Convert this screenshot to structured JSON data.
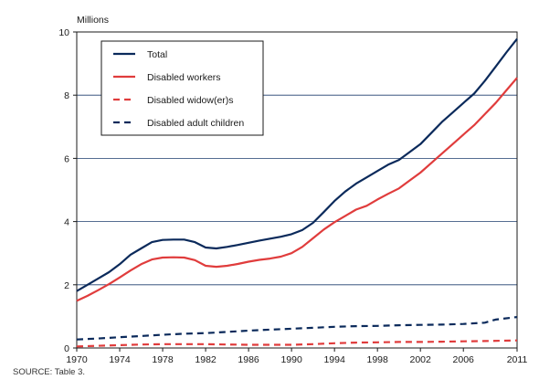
{
  "chart_data": {
    "type": "line",
    "y_unit_label": "Millions",
    "xlim": [
      1970,
      2011
    ],
    "ylim": [
      0,
      10
    ],
    "y_ticks": [
      0,
      2,
      4,
      6,
      8,
      10
    ],
    "x_ticks": [
      1970,
      1974,
      1978,
      1982,
      1986,
      1990,
      1994,
      1998,
      2002,
      2006,
      2011
    ],
    "grid": "horizontal",
    "legend_position": "top-left",
    "series": [
      {
        "name": "Total",
        "color": "#0b2a5b",
        "style": "solid",
        "x": [
          1970,
          1971,
          1972,
          1973,
          1974,
          1975,
          1976,
          1977,
          1978,
          1979,
          1980,
          1981,
          1982,
          1983,
          1984,
          1985,
          1986,
          1987,
          1988,
          1989,
          1990,
          1991,
          1992,
          1993,
          1994,
          1995,
          1996,
          1997,
          1998,
          1999,
          2000,
          2001,
          2002,
          2003,
          2004,
          2005,
          2006,
          2007,
          2008,
          2009,
          2010,
          2011
        ],
        "values": [
          1.8,
          2.0,
          2.2,
          2.4,
          2.65,
          2.95,
          3.15,
          3.35,
          3.42,
          3.43,
          3.43,
          3.35,
          3.18,
          3.15,
          3.2,
          3.26,
          3.33,
          3.4,
          3.46,
          3.52,
          3.6,
          3.73,
          3.96,
          4.3,
          4.65,
          4.95,
          5.2,
          5.4,
          5.6,
          5.8,
          5.95,
          6.2,
          6.45,
          6.8,
          7.15,
          7.45,
          7.75,
          8.05,
          8.45,
          8.9,
          9.35,
          9.78
        ]
      },
      {
        "name": "Disabled workers",
        "color": "#e03c3c",
        "style": "solid",
        "x": [
          1970,
          1971,
          1972,
          1973,
          1974,
          1975,
          1976,
          1977,
          1978,
          1979,
          1980,
          1981,
          1982,
          1983,
          1984,
          1985,
          1986,
          1987,
          1988,
          1989,
          1990,
          1991,
          1992,
          1993,
          1994,
          1995,
          1996,
          1997,
          1998,
          1999,
          2000,
          2001,
          2002,
          2003,
          2004,
          2005,
          2006,
          2007,
          2008,
          2009,
          2010,
          2011
        ],
        "values": [
          1.49,
          1.65,
          1.83,
          2.02,
          2.23,
          2.45,
          2.65,
          2.8,
          2.86,
          2.87,
          2.86,
          2.78,
          2.6,
          2.57,
          2.6,
          2.66,
          2.73,
          2.79,
          2.83,
          2.89,
          3.0,
          3.2,
          3.47,
          3.75,
          3.98,
          4.18,
          4.38,
          4.5,
          4.7,
          4.88,
          5.05,
          5.3,
          5.55,
          5.85,
          6.15,
          6.45,
          6.75,
          7.05,
          7.4,
          7.75,
          8.15,
          8.55
        ]
      },
      {
        "name": "Disabled widow(er)s",
        "color": "#e03c3c",
        "style": "dashed",
        "x": [
          1970,
          1972,
          1974,
          1976,
          1978,
          1980,
          1982,
          1984,
          1986,
          1988,
          1990,
          1992,
          1994,
          1996,
          1998,
          2000,
          2002,
          2004,
          2006,
          2008,
          2011
        ],
        "values": [
          0.05,
          0.07,
          0.09,
          0.11,
          0.12,
          0.12,
          0.12,
          0.11,
          0.1,
          0.1,
          0.1,
          0.12,
          0.15,
          0.17,
          0.18,
          0.19,
          0.19,
          0.2,
          0.21,
          0.22,
          0.24
        ]
      },
      {
        "name": "Disabled adult children",
        "color": "#0b2a5b",
        "style": "dashed",
        "x": [
          1970,
          1972,
          1974,
          1976,
          1978,
          1980,
          1982,
          1984,
          1986,
          1988,
          1990,
          1992,
          1994,
          1996,
          1998,
          2000,
          2002,
          2004,
          2006,
          2008,
          2009,
          2011
        ],
        "values": [
          0.27,
          0.3,
          0.34,
          0.38,
          0.42,
          0.45,
          0.47,
          0.51,
          0.55,
          0.58,
          0.61,
          0.64,
          0.67,
          0.69,
          0.7,
          0.72,
          0.73,
          0.74,
          0.76,
          0.8,
          0.9,
          0.98
        ]
      }
    ]
  },
  "source_note": "SOURCE: Table 3."
}
